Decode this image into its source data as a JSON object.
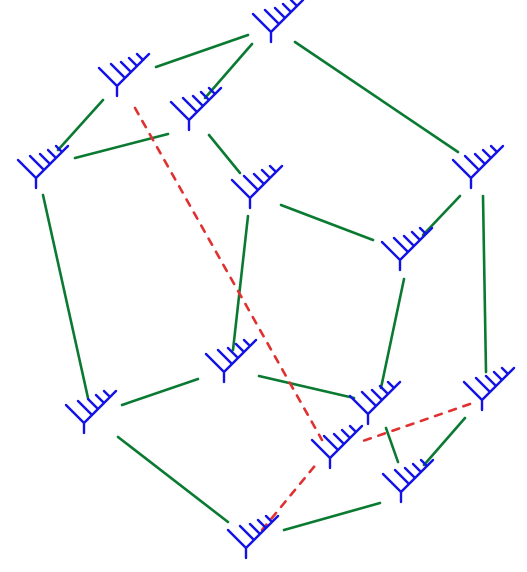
{
  "diagram": {
    "type": "graph",
    "colors": {
      "tree_node": "#1212e6",
      "solid_edge": "#0a7a32",
      "dashed_edge": "#e03030",
      "background": "#ffffff"
    },
    "nodes": [
      {
        "id": "n1",
        "icon": "rooted-tree-icon"
      },
      {
        "id": "n2",
        "icon": "rooted-tree-icon"
      },
      {
        "id": "n3",
        "icon": "rooted-tree-icon"
      },
      {
        "id": "n4",
        "icon": "rooted-tree-icon"
      },
      {
        "id": "n5",
        "icon": "rooted-tree-icon"
      },
      {
        "id": "n6",
        "icon": "rooted-tree-icon"
      },
      {
        "id": "n7",
        "icon": "rooted-tree-icon"
      },
      {
        "id": "n8",
        "icon": "rooted-tree-icon"
      },
      {
        "id": "n9",
        "icon": "rooted-tree-icon"
      },
      {
        "id": "n10",
        "icon": "rooted-tree-icon"
      },
      {
        "id": "n11",
        "icon": "rooted-tree-icon"
      },
      {
        "id": "n12",
        "icon": "rooted-tree-icon"
      },
      {
        "id": "n13",
        "icon": "rooted-tree-icon"
      },
      {
        "id": "n14",
        "icon": "rooted-tree-icon"
      }
    ],
    "edges": [
      {
        "from": "n1",
        "to": "n2",
        "style": "solid"
      },
      {
        "from": "n1",
        "to": "n3",
        "style": "solid"
      },
      {
        "from": "n1",
        "to": "n5",
        "style": "solid"
      },
      {
        "from": "n2",
        "to": "n4",
        "style": "solid"
      },
      {
        "from": "n3",
        "to": "n4",
        "style": "solid"
      },
      {
        "from": "n3",
        "to": "n6",
        "style": "solid"
      },
      {
        "from": "n4",
        "to": "n10",
        "style": "solid"
      },
      {
        "from": "n5",
        "to": "n7",
        "style": "solid"
      },
      {
        "from": "n5",
        "to": "n9",
        "style": "solid"
      },
      {
        "from": "n6",
        "to": "n7",
        "style": "solid"
      },
      {
        "from": "n6",
        "to": "n8",
        "style": "solid"
      },
      {
        "from": "n7",
        "to": "n11",
        "style": "solid"
      },
      {
        "from": "n8",
        "to": "n10",
        "style": "solid"
      },
      {
        "from": "n8",
        "to": "n11",
        "style": "solid"
      },
      {
        "from": "n9",
        "to": "n12",
        "style": "solid"
      },
      {
        "from": "n10",
        "to": "n14",
        "style": "solid"
      },
      {
        "from": "n11",
        "to": "n13",
        "style": "solid"
      },
      {
        "from": "n12",
        "to": "n13",
        "style": "solid"
      },
      {
        "from": "n13",
        "to": "n14",
        "style": "solid"
      },
      {
        "from": "n2",
        "to": "n15",
        "style": "dashed"
      },
      {
        "from": "n9",
        "to": "n15",
        "style": "dashed"
      },
      {
        "from": "n14",
        "to": "n15",
        "style": "dashed"
      }
    ]
  }
}
